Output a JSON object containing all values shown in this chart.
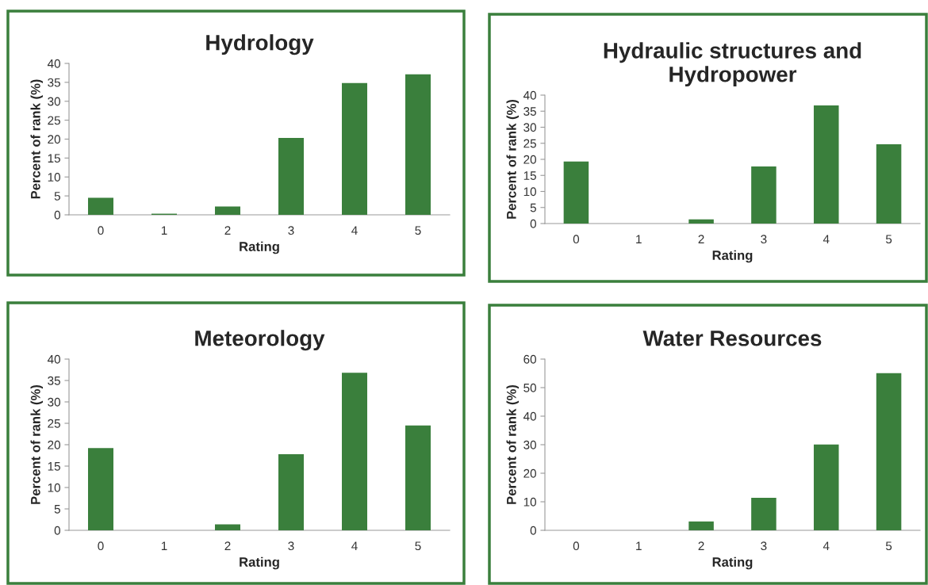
{
  "chart_data": [
    {
      "type": "bar",
      "title": "Hydrology",
      "xlabel": "Rating",
      "ylabel": "Percent of rank (%)",
      "categories": [
        "0",
        "1",
        "2",
        "3",
        "4",
        "5"
      ],
      "color": "#3a7f3c",
      "values": [
        4.5,
        0.3,
        2.2,
        20.3,
        34.8,
        37.1
      ],
      "ylim": [
        0,
        40
      ],
      "yticks": [
        0,
        5,
        10,
        15,
        20,
        25,
        30,
        35,
        40
      ],
      "grid": false,
      "legend": false
    },
    {
      "type": "bar",
      "title": "Hydraulic structures and\nHydropower",
      "xlabel": "Rating",
      "ylabel": "Percent of rank (%)",
      "categories": [
        "0",
        "1",
        "2",
        "3",
        "4",
        "5"
      ],
      "color": "#3a7f3c",
      "values": [
        19.3,
        0,
        1.3,
        17.8,
        36.8,
        24.7
      ],
      "ylim": [
        0,
        40
      ],
      "yticks": [
        0,
        5,
        10,
        15,
        20,
        25,
        30,
        35,
        40
      ],
      "grid": false,
      "legend": false
    },
    {
      "type": "bar",
      "title": "Meteorology",
      "xlabel": "Rating",
      "ylabel": "Percent of rank (%)",
      "categories": [
        "0",
        "1",
        "2",
        "3",
        "4",
        "5"
      ],
      "color": "#3a7f3c",
      "values": [
        19.2,
        0,
        1.4,
        17.8,
        36.8,
        24.5
      ],
      "ylim": [
        0,
        40
      ],
      "yticks": [
        0,
        5,
        10,
        15,
        20,
        25,
        30,
        35,
        40
      ],
      "grid": false,
      "legend": false
    },
    {
      "type": "bar",
      "title": "Water Resources",
      "xlabel": "Rating",
      "ylabel": "Percent of rank (%)",
      "categories": [
        "0",
        "1",
        "2",
        "3",
        "4",
        "5"
      ],
      "color": "#3a7f3c",
      "values": [
        0,
        0,
        3.1,
        11.4,
        30.1,
        55.1
      ],
      "ylim": [
        0,
        60
      ],
      "yticks": [
        0,
        10,
        20,
        30,
        40,
        50,
        60
      ],
      "grid": false,
      "legend": false
    }
  ]
}
